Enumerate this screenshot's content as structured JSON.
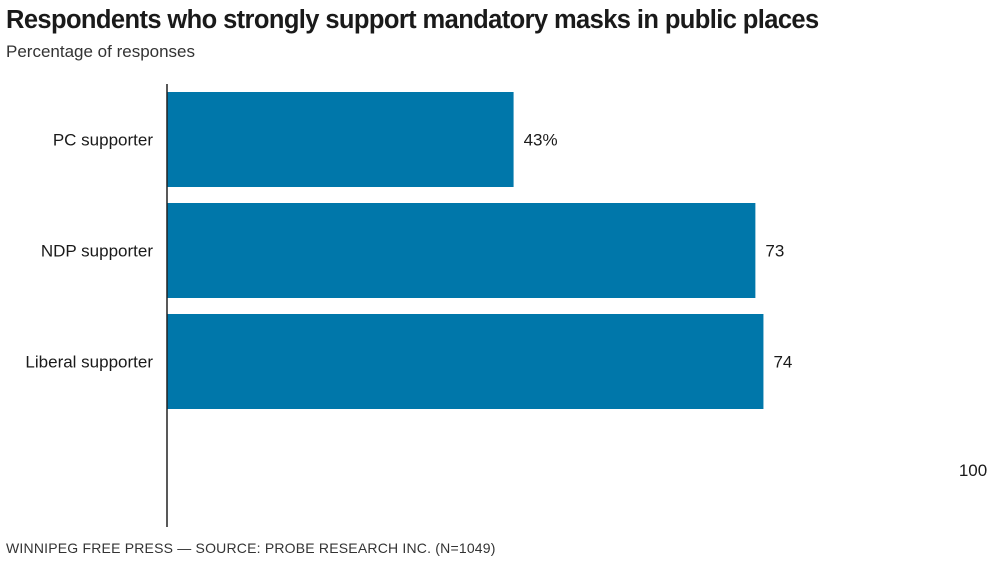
{
  "header": {
    "title": "Respondents who strongly support mandatory masks in public places",
    "subtitle": "Percentage of responses"
  },
  "footer": {
    "source": "WINNIPEG FREE PRESS — SOURCE: PROBE RESEARCH INC. (N=1049)"
  },
  "colors": {
    "bar": "#0077aa",
    "axis": "#222222",
    "text": "#1a1a1a"
  },
  "chart_data": {
    "type": "bar",
    "orientation": "horizontal",
    "title": "Respondents who strongly support mandatory masks in public places",
    "subtitle": "Percentage of responses",
    "categories": [
      "PC supporter",
      "NDP supporter",
      "Liberal supporter"
    ],
    "values": [
      43,
      73,
      74
    ],
    "value_labels": [
      "43%",
      "73",
      "74"
    ],
    "xlim": [
      0,
      100
    ],
    "x_tick_labels": [
      "100"
    ],
    "grid": false,
    "legend": "none"
  }
}
